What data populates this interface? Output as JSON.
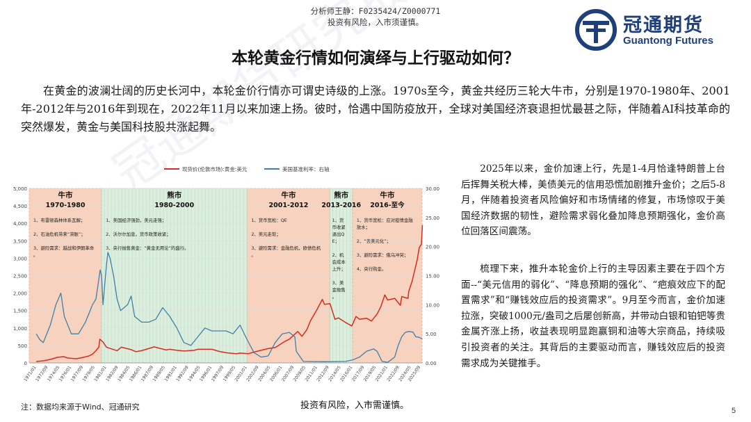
{
  "header": {
    "analyst": "分析师王静：F0235424/Z0000771",
    "risk_top": "投资有风险，入市须谨慎。",
    "logo_cn": "冠通期货",
    "logo_en": "Guantong Futures"
  },
  "title": "本轮黄金行情如何演绎与上行驱动如何？",
  "intro": "在黄金的波澜壮阔的历史长河中，本轮金价行情亦可谓史诗级的上涨。1970s至今，黄金共经历三轮大牛市，分别是1970-1980年、2001年-2012年与2016年到现在，2022年11月以来加速上扬。彼时，恰遇中国防疫放开，全球对美国经济衰退担忧最甚之际，伴随着AI科技革命的突然爆发，黄金与美国科技股共涨起舞。",
  "right": {
    "p1": "2025年以来，金价加速上行，先是1-4月恰逢特朗普上台后挥舞关税大棒，美债美元的信用恐慌加剧推升金价；之后5-8月，伴随着投资者风险偏好和市场情绪的修复，市场惊叹于美国经济数据的韧性，避险需求弱化叠加降息预期强化，金价高位回落区间震荡。",
    "p2": "梳理下来，推升本轮金价上行的主导因素主要在于四个方面--“美元信用的弱化”、“降息预期的强化”、“疤痕效应下的配置需求”和“赚钱效应后的投资需求”。9月至今而言，金价加速拉涨，突破1000元/盎司之后屡创新高，并带动白银和铂钯等贵金属齐涨上扬，收益表现明显跑赢铜和油等大宗商品，持续吸引投资者的关注。其背后的主要驱动而言，赚钱效应后的投资需求成为关键推手。"
  },
  "footer": {
    "source": "注：数据均来源于Wind、冠通研究",
    "risk_bottom": "投资有风险，入市需谨慎。",
    "page": "5"
  },
  "watermark": "冠通期货研究报告",
  "colors": {
    "gold": "#d62b1f",
    "rate": "#3f7fa8",
    "bull_band": "#f7d3bf",
    "bear_band": "#dceede",
    "brand": "#1f3f7a"
  },
  "chart_data": {
    "type": "line",
    "legend": [
      "现货价(伦敦市场):黄金:美元",
      "美国基准利率：右轴"
    ],
    "legend_position": "top",
    "y_left": {
      "ticks": [
        "0",
        "500",
        "1,000",
        "1,500",
        "2,000",
        "2,500",
        "3,000",
        "3,500",
        "4,000",
        "4,500",
        "5,000"
      ],
      "ylim": [
        0,
        5000
      ]
    },
    "y_right": {
      "ticks": [
        "0.00",
        "5.00",
        "10.00",
        "15.00",
        "20.00",
        "25.00",
        "30.00"
      ],
      "ylim": [
        0,
        30
      ]
    },
    "x_ticks": [
      "1971/01",
      "1972/09",
      "1974/05",
      "1976/01",
      "1977/09",
      "1979/05",
      "1981/01",
      "1982/09",
      "1984/05",
      "1986/01",
      "1987/09",
      "1989/05",
      "1991/01",
      "1992/09",
      "1994/05",
      "1996/01",
      "1997/09",
      "1999/05",
      "2001/01",
      "2002/09",
      "2004/05",
      "2006/01",
      "2007/09",
      "2009/05",
      "2011/01",
      "2012/09",
      "2014/05",
      "2016/01",
      "2017/09",
      "2019/05",
      "2021/01",
      "2022/09",
      "2024/05",
      "2025/09"
    ],
    "periods": [
      {
        "kind": "bull",
        "name": "牛市",
        "range": "1970-1980",
        "start": 1970,
        "end": 1980.3,
        "notes": [
          "1、布雷顿森林体系瓦解；",
          "2、石油危机带来“滞胀”；",
          "3、避险需求：越战和伊朗革命。"
        ]
      },
      {
        "kind": "bear",
        "name": "熊市",
        "range": "1980-2000",
        "start": 1980.3,
        "end": 2001,
        "notes": [
          "1、美国经济强劲，美元走强；",
          "2、沃尔尔加息，货币政策收紧；",
          "3、央行抛售黄金：“黄金无用论”的盛行。"
        ]
      },
      {
        "kind": "bull",
        "name": "牛市",
        "range": "2001-2012",
        "start": 2001,
        "end": 2012.8,
        "notes": [
          "1、货币宽松：QE",
          "2、美元走软；",
          "3、避险需求：金融危机，欧债危机。"
        ]
      },
      {
        "kind": "bear",
        "name": "熊市",
        "range": "2013-2016",
        "start": 2012.8,
        "end": 2016,
        "notes": [
          "1、货币收紧退出QE；",
          "2、机会成本上升；",
          "3、美金抛售。"
        ]
      },
      {
        "kind": "bull",
        "name": "牛市",
        "range": "2016-至今",
        "start": 2016,
        "end": 2025.9,
        "notes": [
          "1、货币宽松：应对疫情金融放水；",
          "2、“去美元化”；",
          "3、避险需求：俄乌冲突；",
          "4、央行购金。"
        ]
      }
    ],
    "series": [
      {
        "name": "现货价(伦敦市场):黄金:美元",
        "axis": "left",
        "x": [
          1971,
          1972,
          1973,
          1974,
          1974.9,
          1975.5,
          1976.7,
          1977.5,
          1978.5,
          1979,
          1979.5,
          1979.9,
          1980.05,
          1980.5,
          1981,
          1982.5,
          1983.1,
          1984.5,
          1985.2,
          1986,
          1987.8,
          1988.5,
          1989.5,
          1990,
          1991,
          1992,
          1993.5,
          1994,
          1996,
          1997,
          1998,
          1999.5,
          2000,
          2001.2,
          2002,
          2003,
          2004,
          2005,
          2006.4,
          2007,
          2008.2,
          2008.8,
          2009.5,
          2010,
          2011,
          2011.7,
          2012,
          2012.8,
          2013.5,
          2014,
          2015,
          2015.9,
          2016.5,
          2017,
          2018,
          2018.7,
          2019.5,
          2020,
          2020.6,
          2021,
          2022,
          2022.8,
          2023,
          2023.9,
          2024,
          2024.5,
          2024.9,
          2025.2,
          2025.5,
          2025.8,
          2025.95
        ],
        "y": [
          40,
          60,
          100,
          160,
          180,
          140,
          120,
          150,
          200,
          250,
          350,
          450,
          680,
          600,
          450,
          350,
          450,
          380,
          320,
          350,
          460,
          420,
          370,
          390,
          360,
          340,
          360,
          390,
          390,
          330,
          290,
          260,
          280,
          265,
          310,
          360,
          410,
          440,
          620,
          680,
          900,
          760,
          950,
          1200,
          1550,
          1820,
          1680,
          1700,
          1250,
          1290,
          1160,
          1060,
          1330,
          1250,
          1280,
          1200,
          1400,
          1600,
          1950,
          1800,
          1850,
          1650,
          1900,
          1850,
          2050,
          2350,
          2700,
          2950,
          3300,
          3400,
          3950
        ]
      },
      {
        "name": "美国基准利率：右轴",
        "axis": "right",
        "x": [
          1971,
          1971.5,
          1972,
          1973,
          1973.8,
          1974.5,
          1975,
          1976,
          1977,
          1978,
          1979,
          1979.5,
          1980.1,
          1980.3,
          1980.5,
          1981,
          1981.2,
          1981.5,
          1982,
          1982.5,
          1983,
          1984,
          1984.5,
          1985,
          1986,
          1987,
          1988,
          1989,
          1990,
          1991,
          1992,
          1993,
          1994,
          1995,
          1996,
          1997,
          1998,
          1999,
          2000,
          2001,
          2002,
          2003,
          2004,
          2005,
          2006,
          2007,
          2007.8,
          2008,
          2009,
          2012,
          2015,
          2016,
          2017,
          2018,
          2019,
          2019.5,
          2020.2,
          2021,
          2022,
          2022.5,
          2023,
          2023.5,
          2024,
          2024.6,
          2025,
          2025.5,
          2025.95
        ],
        "y": [
          5,
          4,
          3.5,
          6.5,
          10,
          12,
          8,
          5,
          5,
          7,
          10,
          11,
          16,
          15,
          10,
          17,
          19,
          18,
          15,
          11,
          9,
          10,
          11.5,
          8,
          7,
          7,
          7.5,
          9.5,
          8,
          6,
          3.5,
          3,
          4.5,
          6,
          5.5,
          5.5,
          5.5,
          5,
          6.5,
          4,
          1.75,
          1,
          1.2,
          3.5,
          5,
          5.25,
          4.5,
          2,
          0.25,
          0.2,
          0.25,
          0.5,
          1,
          2,
          2.4,
          2,
          0.25,
          0.1,
          1,
          3,
          4.5,
          5.25,
          5.4,
          5.3,
          4.5,
          4.4,
          4.1
        ]
      }
    ]
  }
}
